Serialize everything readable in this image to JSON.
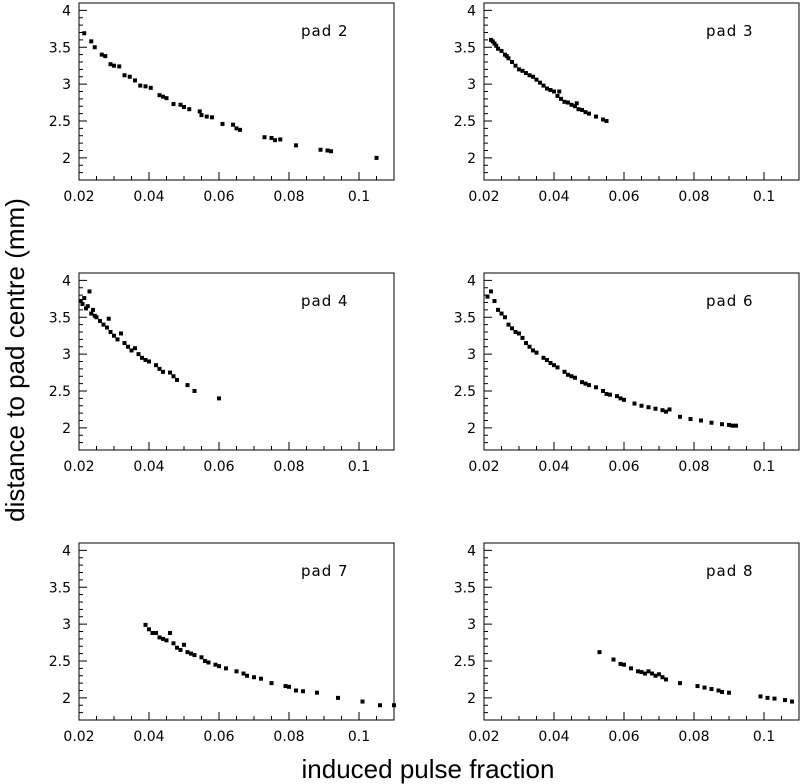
{
  "xlabel": "induced pulse fraction",
  "ylabel": "distance to pad centre (mm)",
  "chart_data": [
    {
      "type": "scatter",
      "title": "pad 2",
      "xlim": [
        0.02,
        0.11
      ],
      "ylim": [
        1.7,
        4.1
      ],
      "xticks": [
        "0.02",
        "0.04",
        "0.06",
        "0.08",
        "0.1"
      ],
      "yticks": [
        "2",
        "2.5",
        "3",
        "3.5",
        "4"
      ],
      "points": [
        [
          0.0215,
          3.69
        ],
        [
          0.0235,
          3.58
        ],
        [
          0.0245,
          3.5
        ],
        [
          0.0265,
          3.4
        ],
        [
          0.0275,
          3.38
        ],
        [
          0.029,
          3.27
        ],
        [
          0.03,
          3.25
        ],
        [
          0.0315,
          3.24
        ],
        [
          0.033,
          3.12
        ],
        [
          0.0345,
          3.1
        ],
        [
          0.036,
          3.05
        ],
        [
          0.0375,
          2.98
        ],
        [
          0.039,
          2.97
        ],
        [
          0.0405,
          2.95
        ],
        [
          0.043,
          2.85
        ],
        [
          0.044,
          2.83
        ],
        [
          0.045,
          2.81
        ],
        [
          0.047,
          2.73
        ],
        [
          0.049,
          2.72
        ],
        [
          0.05,
          2.69
        ],
        [
          0.0515,
          2.66
        ],
        [
          0.0545,
          2.63
        ],
        [
          0.055,
          2.58
        ],
        [
          0.0565,
          2.56
        ],
        [
          0.058,
          2.55
        ],
        [
          0.061,
          2.46
        ],
        [
          0.064,
          2.45
        ],
        [
          0.065,
          2.4
        ],
        [
          0.066,
          2.38
        ],
        [
          0.073,
          2.28
        ],
        [
          0.075,
          2.27
        ],
        [
          0.076,
          2.24
        ],
        [
          0.0775,
          2.25
        ],
        [
          0.082,
          2.17
        ],
        [
          0.089,
          2.11
        ],
        [
          0.091,
          2.1
        ],
        [
          0.092,
          2.09
        ],
        [
          0.105,
          2.0
        ]
      ]
    },
    {
      "type": "scatter",
      "title": "pad 3",
      "xlim": [
        0.02,
        0.11
      ],
      "ylim": [
        1.7,
        4.1
      ],
      "xticks": [
        "0.02",
        "0.04",
        "0.06",
        "0.08",
        "0.1"
      ],
      "yticks": [
        "2",
        "2.5",
        "3",
        "3.5",
        "4"
      ],
      "points": [
        [
          0.022,
          3.6
        ],
        [
          0.0225,
          3.58
        ],
        [
          0.023,
          3.55
        ],
        [
          0.0235,
          3.52
        ],
        [
          0.024,
          3.48
        ],
        [
          0.025,
          3.45
        ],
        [
          0.026,
          3.4
        ],
        [
          0.0265,
          3.38
        ],
        [
          0.027,
          3.35
        ],
        [
          0.028,
          3.3
        ],
        [
          0.029,
          3.25
        ],
        [
          0.03,
          3.2
        ],
        [
          0.031,
          3.18
        ],
        [
          0.032,
          3.15
        ],
        [
          0.033,
          3.12
        ],
        [
          0.034,
          3.1
        ],
        [
          0.035,
          3.06
        ],
        [
          0.036,
          3.02
        ],
        [
          0.037,
          2.98
        ],
        [
          0.038,
          2.94
        ],
        [
          0.039,
          2.92
        ],
        [
          0.04,
          2.9
        ],
        [
          0.041,
          2.84
        ],
        [
          0.0415,
          2.9
        ],
        [
          0.042,
          2.8
        ],
        [
          0.043,
          2.76
        ],
        [
          0.044,
          2.75
        ],
        [
          0.045,
          2.72
        ],
        [
          0.046,
          2.7
        ],
        [
          0.0465,
          2.74
        ],
        [
          0.047,
          2.66
        ],
        [
          0.048,
          2.65
        ],
        [
          0.049,
          2.62
        ],
        [
          0.05,
          2.6
        ],
        [
          0.052,
          2.56
        ],
        [
          0.054,
          2.52
        ],
        [
          0.055,
          2.5
        ]
      ]
    },
    {
      "type": "scatter",
      "title": "pad 4",
      "xlim": [
        0.02,
        0.11
      ],
      "ylim": [
        1.7,
        4.1
      ],
      "xticks": [
        "0.02",
        "0.04",
        "0.06",
        "0.08",
        "0.1"
      ],
      "yticks": [
        "2",
        "2.5",
        "3",
        "3.5",
        "4"
      ],
      "points": [
        [
          0.0205,
          3.72
        ],
        [
          0.021,
          3.68
        ],
        [
          0.0215,
          3.76
        ],
        [
          0.022,
          3.62
        ],
        [
          0.0225,
          3.65
        ],
        [
          0.023,
          3.85
        ],
        [
          0.0235,
          3.55
        ],
        [
          0.024,
          3.6
        ],
        [
          0.0245,
          3.52
        ],
        [
          0.025,
          3.5
        ],
        [
          0.026,
          3.45
        ],
        [
          0.027,
          3.4
        ],
        [
          0.028,
          3.36
        ],
        [
          0.0285,
          3.48
        ],
        [
          0.029,
          3.3
        ],
        [
          0.03,
          3.25
        ],
        [
          0.031,
          3.2
        ],
        [
          0.032,
          3.28
        ],
        [
          0.033,
          3.15
        ],
        [
          0.034,
          3.1
        ],
        [
          0.035,
          3.05
        ],
        [
          0.036,
          3.08
        ],
        [
          0.037,
          3.0
        ],
        [
          0.038,
          2.95
        ],
        [
          0.039,
          2.92
        ],
        [
          0.04,
          2.9
        ],
        [
          0.042,
          2.85
        ],
        [
          0.043,
          2.8
        ],
        [
          0.044,
          2.76
        ],
        [
          0.046,
          2.75
        ],
        [
          0.047,
          2.7
        ],
        [
          0.048,
          2.65
        ],
        [
          0.051,
          2.58
        ],
        [
          0.053,
          2.5
        ],
        [
          0.06,
          2.4
        ]
      ]
    },
    {
      "type": "scatter",
      "title": "pad 6",
      "xlim": [
        0.02,
        0.11
      ],
      "ylim": [
        1.7,
        4.1
      ],
      "xticks": [
        "0.02",
        "0.04",
        "0.06",
        "0.08",
        "0.1"
      ],
      "yticks": [
        "2",
        "2.5",
        "3",
        "3.5",
        "4"
      ],
      "points": [
        [
          0.021,
          3.78
        ],
        [
          0.022,
          3.85
        ],
        [
          0.023,
          3.72
        ],
        [
          0.024,
          3.6
        ],
        [
          0.025,
          3.55
        ],
        [
          0.026,
          3.5
        ],
        [
          0.027,
          3.4
        ],
        [
          0.028,
          3.35
        ],
        [
          0.029,
          3.3
        ],
        [
          0.03,
          3.28
        ],
        [
          0.031,
          3.22
        ],
        [
          0.032,
          3.15
        ],
        [
          0.033,
          3.1
        ],
        [
          0.034,
          3.05
        ],
        [
          0.035,
          3.02
        ],
        [
          0.037,
          2.95
        ],
        [
          0.038,
          2.92
        ],
        [
          0.039,
          2.88
        ],
        [
          0.04,
          2.85
        ],
        [
          0.041,
          2.82
        ],
        [
          0.043,
          2.76
        ],
        [
          0.044,
          2.72
        ],
        [
          0.045,
          2.7
        ],
        [
          0.046,
          2.68
        ],
        [
          0.048,
          2.62
        ],
        [
          0.049,
          2.6
        ],
        [
          0.05,
          2.58
        ],
        [
          0.052,
          2.55
        ],
        [
          0.054,
          2.5
        ],
        [
          0.055,
          2.46
        ],
        [
          0.056,
          2.45
        ],
        [
          0.058,
          2.43
        ],
        [
          0.059,
          2.4
        ],
        [
          0.06,
          2.38
        ],
        [
          0.063,
          2.33
        ],
        [
          0.065,
          2.3
        ],
        [
          0.067,
          2.28
        ],
        [
          0.069,
          2.26
        ],
        [
          0.071,
          2.24
        ],
        [
          0.072,
          2.22
        ],
        [
          0.073,
          2.25
        ],
        [
          0.076,
          2.15
        ],
        [
          0.079,
          2.12
        ],
        [
          0.082,
          2.1
        ],
        [
          0.085,
          2.07
        ],
        [
          0.088,
          2.05
        ],
        [
          0.09,
          2.04
        ],
        [
          0.091,
          2.03
        ],
        [
          0.092,
          2.03
        ]
      ]
    },
    {
      "type": "scatter",
      "title": "pad 7",
      "xlim": [
        0.02,
        0.11
      ],
      "ylim": [
        1.7,
        4.1
      ],
      "xticks": [
        "0.02",
        "0.04",
        "0.06",
        "0.08",
        "0.1"
      ],
      "yticks": [
        "2",
        "2.5",
        "3",
        "3.5",
        "4"
      ],
      "points": [
        [
          0.039,
          2.99
        ],
        [
          0.04,
          2.93
        ],
        [
          0.041,
          2.88
        ],
        [
          0.042,
          2.88
        ],
        [
          0.043,
          2.82
        ],
        [
          0.044,
          2.8
        ],
        [
          0.045,
          2.78
        ],
        [
          0.046,
          2.88
        ],
        [
          0.047,
          2.74
        ],
        [
          0.048,
          2.68
        ],
        [
          0.049,
          2.65
        ],
        [
          0.05,
          2.72
        ],
        [
          0.051,
          2.62
        ],
        [
          0.052,
          2.6
        ],
        [
          0.053,
          2.58
        ],
        [
          0.055,
          2.55
        ],
        [
          0.056,
          2.5
        ],
        [
          0.057,
          2.48
        ],
        [
          0.059,
          2.45
        ],
        [
          0.06,
          2.43
        ],
        [
          0.062,
          2.4
        ],
        [
          0.065,
          2.36
        ],
        [
          0.067,
          2.33
        ],
        [
          0.068,
          2.3
        ],
        [
          0.07,
          2.28
        ],
        [
          0.072,
          2.26
        ],
        [
          0.075,
          2.2
        ],
        [
          0.079,
          2.16
        ],
        [
          0.08,
          2.15
        ],
        [
          0.082,
          2.1
        ],
        [
          0.084,
          2.09
        ],
        [
          0.088,
          2.07
        ],
        [
          0.094,
          2.0
        ],
        [
          0.101,
          1.95
        ],
        [
          0.106,
          1.9
        ],
        [
          0.11,
          1.9
        ]
      ]
    },
    {
      "type": "scatter",
      "title": "pad 8",
      "xlim": [
        0.02,
        0.11
      ],
      "ylim": [
        1.7,
        4.1
      ],
      "xticks": [
        "0.02",
        "0.04",
        "0.06",
        "0.08",
        "0.1"
      ],
      "yticks": [
        "2",
        "2.5",
        "3",
        "3.5",
        "4"
      ],
      "points": [
        [
          0.053,
          2.62
        ],
        [
          0.057,
          2.52
        ],
        [
          0.059,
          2.46
        ],
        [
          0.06,
          2.45
        ],
        [
          0.062,
          2.4
        ],
        [
          0.064,
          2.36
        ],
        [
          0.065,
          2.35
        ],
        [
          0.066,
          2.33
        ],
        [
          0.067,
          2.36
        ],
        [
          0.068,
          2.33
        ],
        [
          0.069,
          2.3
        ],
        [
          0.07,
          2.32
        ],
        [
          0.071,
          2.28
        ],
        [
          0.072,
          2.25
        ],
        [
          0.076,
          2.2
        ],
        [
          0.081,
          2.16
        ],
        [
          0.083,
          2.14
        ],
        [
          0.085,
          2.12
        ],
        [
          0.087,
          2.1
        ],
        [
          0.088,
          2.08
        ],
        [
          0.09,
          2.07
        ],
        [
          0.099,
          2.02
        ],
        [
          0.101,
          2.0
        ],
        [
          0.103,
          1.99
        ],
        [
          0.106,
          1.97
        ],
        [
          0.108,
          1.95
        ]
      ]
    }
  ]
}
